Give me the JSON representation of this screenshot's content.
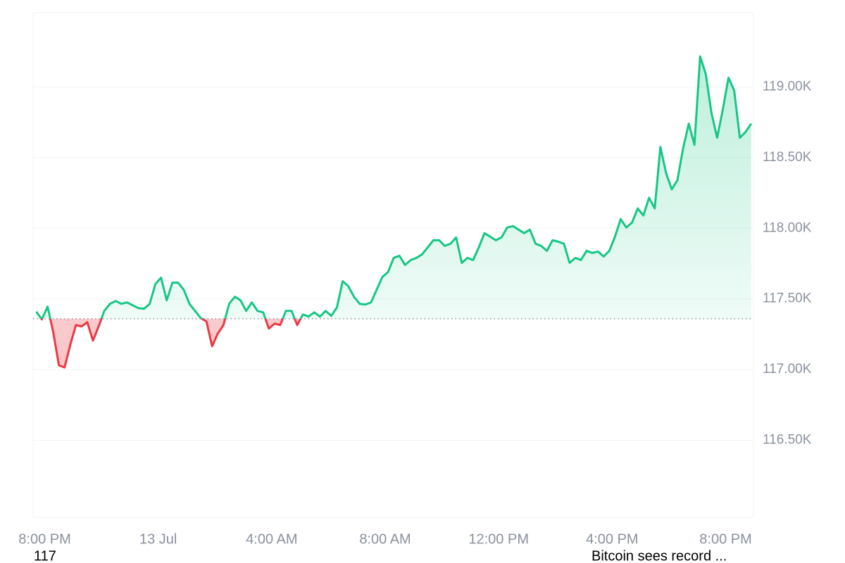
{
  "chart_data": {
    "type": "line",
    "x": [
      -4.3,
      -4.1,
      -3.9,
      -3.7,
      -3.5,
      -3.3,
      -3.1,
      -2.9,
      -2.7,
      -2.5,
      -2.3,
      -2.1,
      -1.9,
      -1.7,
      -1.5,
      -1.3,
      -1.1,
      -0.9,
      -0.7,
      -0.5,
      -0.3,
      -0.1,
      0.1,
      0.3,
      0.5,
      0.7,
      0.9,
      1.1,
      1.3,
      1.5,
      1.7,
      1.9,
      2.1,
      2.3,
      2.5,
      2.7,
      2.9,
      3.1,
      3.3,
      3.5,
      3.7,
      3.9,
      4.1,
      4.3,
      4.5,
      4.7,
      4.9,
      5.1,
      5.3,
      5.5,
      5.7,
      5.9,
      6.1,
      6.3,
      6.5,
      6.7,
      6.9,
      7.1,
      7.3,
      7.5,
      7.7,
      7.9,
      8.1,
      8.3,
      8.5,
      8.7,
      8.9,
      9.1,
      9.3,
      9.5,
      9.7,
      9.9,
      10.1,
      10.3,
      10.5,
      10.7,
      10.9,
      11.1,
      11.3,
      11.5,
      11.7,
      11.9,
      12.1,
      12.3,
      12.5,
      12.7,
      12.9,
      13.1,
      13.3,
      13.5,
      13.7,
      13.9,
      14.1,
      14.3,
      14.5,
      14.7,
      14.9,
      15.1,
      15.3,
      15.5,
      15.7,
      15.9,
      16.1,
      16.3,
      16.5,
      16.7,
      16.9,
      17.1,
      17.3,
      17.5,
      17.7,
      17.9,
      18.1,
      18.3,
      18.5,
      18.7,
      18.9,
      19.1,
      19.3,
      19.5,
      19.7,
      19.9,
      20.1,
      20.3,
      20.5,
      20.7,
      20.9
    ],
    "series": [
      {
        "values": [
          117410,
          117355,
          117445,
          117265,
          117030,
          117015,
          117175,
          117315,
          117305,
          117335,
          117205,
          117305,
          117415,
          117465,
          117485,
          117465,
          117475,
          117455,
          117435,
          117430,
          117465,
          117605,
          117650,
          117490,
          117615,
          117615,
          117565,
          117465,
          117415,
          117365,
          117340,
          117165,
          117255,
          117315,
          117465,
          117515,
          117490,
          117415,
          117475,
          117415,
          117405,
          117290,
          117325,
          117315,
          117415,
          117415,
          117315,
          117390,
          117375,
          117405,
          117375,
          117415,
          117380,
          117440,
          117625,
          117590,
          117515,
          117465,
          117460,
          117475,
          117565,
          117655,
          117690,
          117790,
          117805,
          117740,
          117775,
          117790,
          117815,
          117865,
          117915,
          117915,
          117875,
          117890,
          117935,
          117755,
          117790,
          117775,
          117865,
          117965,
          117940,
          117915,
          117935,
          118005,
          118015,
          117990,
          117965,
          117990,
          117890,
          117875,
          117840,
          117915,
          117905,
          117890,
          117755,
          117790,
          117775,
          117840,
          117825,
          117835,
          117800,
          117840,
          117940,
          118065,
          118005,
          118040,
          118140,
          118090,
          118215,
          118140,
          118575,
          118390,
          118275,
          118340,
          118565,
          118740,
          118590,
          119215,
          119090,
          118815,
          118640,
          118840,
          119065,
          118975,
          118640,
          118680,
          118740
        ]
      }
    ],
    "baseline": 117360,
    "up_color": "#16c784",
    "down_color": "#ea3943",
    "xlim": [
      -4.41,
      20.98
    ],
    "xticks": [
      {
        "value": -4,
        "label": "8:00 PM"
      },
      {
        "value": 0,
        "label": "13 Jul"
      },
      {
        "value": 4,
        "label": "4:00 AM"
      },
      {
        "value": 8,
        "label": "8:00 AM"
      },
      {
        "value": 12,
        "label": "12:00 PM"
      },
      {
        "value": 16,
        "label": "4:00 PM"
      },
      {
        "value": 20,
        "label": "8:00 PM"
      }
    ],
    "ylim": [
      115955,
      119525
    ],
    "yticks": [
      {
        "value": 116500,
        "label": "116.50K"
      },
      {
        "value": 117000,
        "label": "117.00K"
      },
      {
        "value": 117500,
        "label": "117.50K"
      },
      {
        "value": 118000,
        "label": "118.00K"
      },
      {
        "value": 118500,
        "label": "118.50K"
      },
      {
        "value": 119000,
        "label": "119.00K"
      }
    ],
    "grid": true,
    "annotations": [
      "117",
      "Bitcoin sees record ..."
    ]
  }
}
